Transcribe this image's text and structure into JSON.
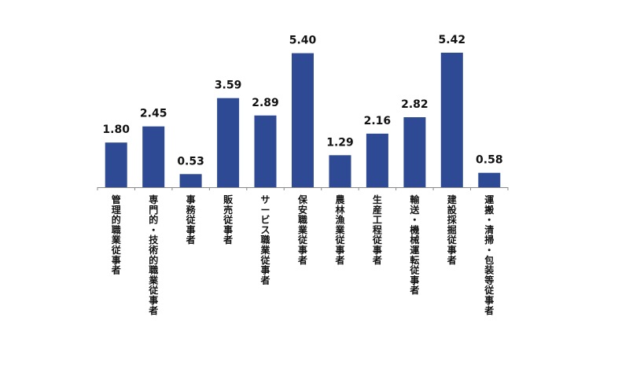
{
  "chart_data": {
    "type": "bar",
    "categories": [
      "管理的職業従事者",
      "専門的・技術的職業従事者",
      "事務従事者",
      "販売従事者",
      "サービス職業従事者",
      "保安職業従事者",
      "農林漁業従事者",
      "生産工程従事者",
      "輸送・機械運転従事者",
      "建設採掘従事者",
      "運搬・清掃・包装等従事者"
    ],
    "values": [
      1.8,
      2.45,
      0.53,
      3.59,
      2.89,
      5.4,
      1.29,
      2.16,
      2.82,
      5.42,
      0.58
    ],
    "value_labels": [
      "1.80",
      "2.45",
      "0.53",
      "3.59",
      "2.89",
      "5.40",
      "1.29",
      "2.16",
      "2.82",
      "5.42",
      "0.58"
    ],
    "title": "",
    "xlabel": "",
    "ylabel": "",
    "ylim": [
      0,
      5.42
    ],
    "grid": false,
    "legend": "none",
    "bar_color": "#2e4a94",
    "axis_color": "#888888"
  }
}
